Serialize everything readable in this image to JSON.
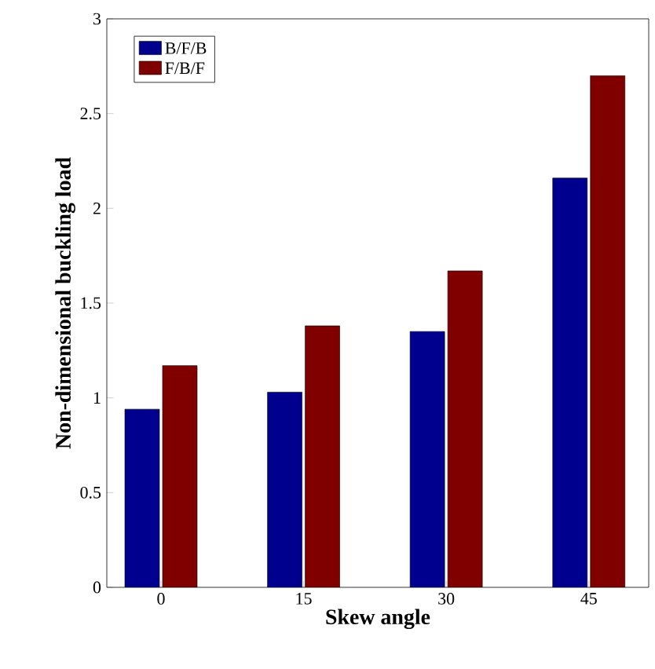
{
  "chart_data": {
    "type": "bar",
    "xlabel": "Skew angle",
    "ylabel": "Non-dimensional buckling load",
    "categories": [
      "0",
      "15",
      "30",
      "45"
    ],
    "series": [
      {
        "name": "B/F/B",
        "color": "#00008f",
        "values": [
          0.94,
          1.03,
          1.35,
          2.16
        ]
      },
      {
        "name": "F/B/F",
        "color": "#800000",
        "values": [
          1.17,
          1.38,
          1.67,
          2.7
        ]
      }
    ],
    "ylim": [
      0,
      3
    ],
    "yticks": [
      0,
      0.5,
      1,
      1.5,
      2,
      2.5,
      3
    ],
    "legend": "top left"
  }
}
